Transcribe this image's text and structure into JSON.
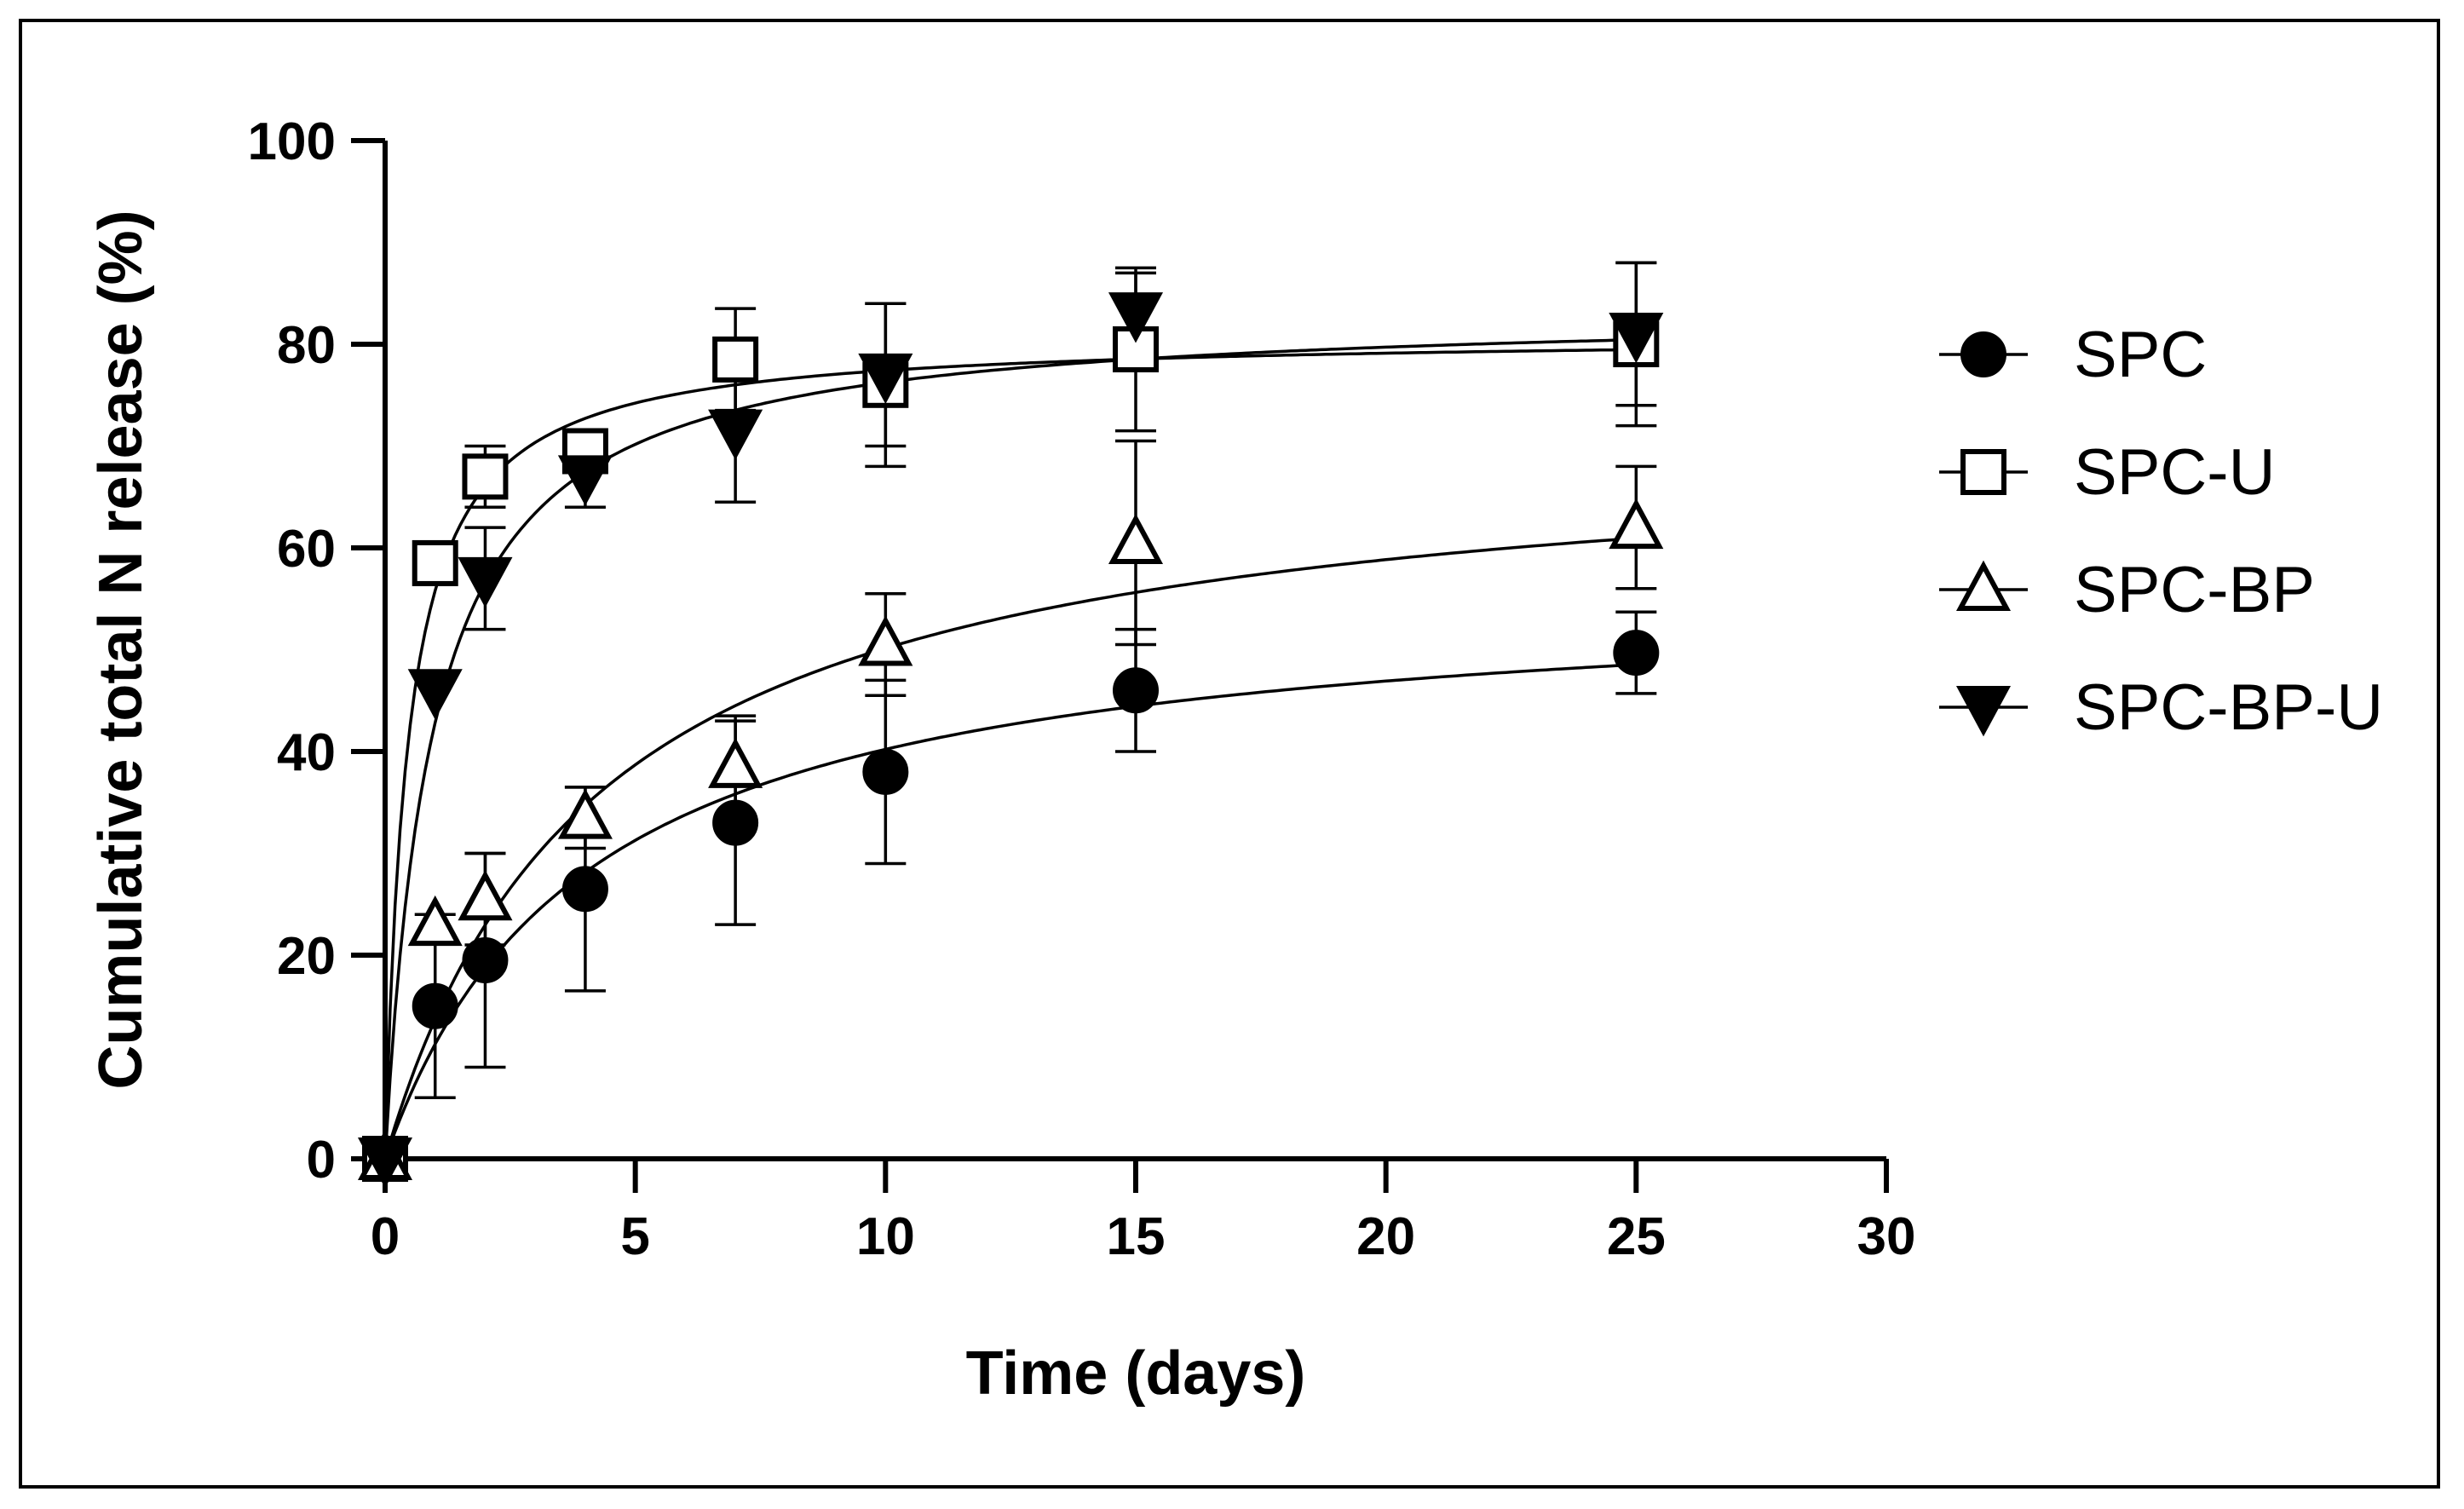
{
  "chart_data": {
    "type": "scatter",
    "xlabel": "Time (days)",
    "ylabel": "Cumulative total N release (%)",
    "xlim": [
      0,
      30
    ],
    "ylim": [
      0,
      100
    ],
    "xticks": [
      0,
      5,
      10,
      15,
      20,
      25,
      30
    ],
    "yticks": [
      0,
      20,
      40,
      60,
      80,
      100
    ],
    "legend_position": "right",
    "series": [
      {
        "name": "SPC",
        "marker": "circle-filled",
        "x": [
          0,
          1,
          2,
          4,
          7,
          10,
          15,
          25
        ],
        "y": [
          0,
          15,
          19.5,
          26.5,
          33,
          38,
          46,
          49.7
        ],
        "err": [
          0,
          9,
          10.5,
          10,
          10,
          9,
          6,
          4
        ],
        "fit": {
          "model": "hyperbolic",
          "max": 56.3,
          "k": 4.0
        }
      },
      {
        "name": "SPC-U",
        "marker": "square-open",
        "x": [
          0,
          1,
          2,
          4,
          7,
          10,
          15,
          25
        ],
        "y": [
          0,
          58.5,
          67,
          69.5,
          78.5,
          76,
          79.5,
          80
        ],
        "err": [
          0,
          0,
          3,
          2,
          5,
          8,
          8,
          8
        ],
        "fit": {
          "model": "hyperbolic",
          "max": 80.9,
          "k": 0.45
        }
      },
      {
        "name": "SPC-BP",
        "marker": "triangle-up-open",
        "x": [
          0,
          1,
          2,
          4,
          7,
          10,
          15,
          25
        ],
        "y": [
          0,
          23,
          25.5,
          33.5,
          38.5,
          50.5,
          60.5,
          62
        ],
        "err": [
          0,
          0,
          4.5,
          3,
          5,
          5,
          10,
          6
        ],
        "fit": {
          "model": "hyperbolic",
          "max": 71.2,
          "k": 4.2
        }
      },
      {
        "name": "SPC-BP-U",
        "marker": "triangle-down-filled",
        "x": [
          0,
          1,
          2,
          4,
          7,
          10,
          15,
          25
        ],
        "y": [
          0,
          46,
          57,
          67,
          71.5,
          77,
          83,
          81
        ],
        "err": [
          0,
          0,
          5,
          3,
          7,
          7,
          4,
          7
        ],
        "fit": {
          "model": "hyperbolic",
          "max": 83.5,
          "k": 0.95
        }
      }
    ]
  }
}
